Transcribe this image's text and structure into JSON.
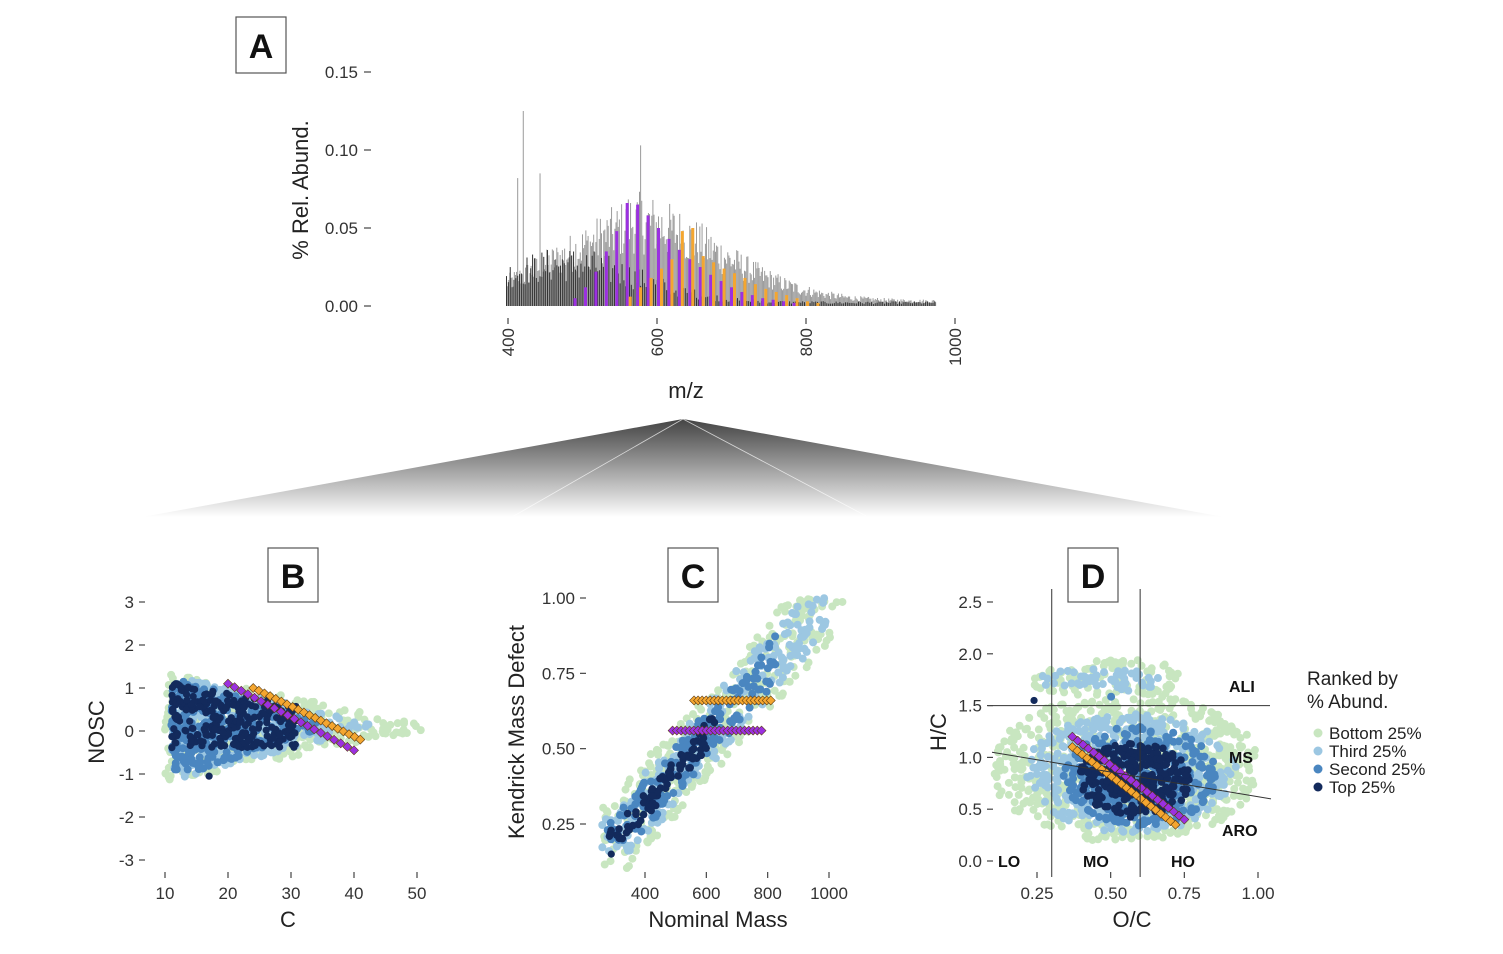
{
  "colors": {
    "bottom25": "#c8e6c0",
    "third25": "#9cc7e2",
    "second25": "#4a86c0",
    "top25": "#132a5c",
    "purple_series": "#9b30e0",
    "orange_series": "#f4a630",
    "spectrum_grey": "#9a9a9a",
    "spectrum_dark": "#333333"
  },
  "chart_data": [
    {
      "panel": "A",
      "type": "bar",
      "label": "A",
      "xlabel": "m/z",
      "ylabel": "% Rel. Abund.",
      "xlim": [
        250,
        1030
      ],
      "ylim": [
        0,
        0.15
      ],
      "xticks": [
        400,
        600,
        800,
        1000
      ],
      "yticks": [
        0.0,
        0.05,
        0.1,
        0.15
      ],
      "ytick_labels": [
        "0.00",
        "0.05",
        "0.10",
        "0.15"
      ],
      "series": [
        {
          "name": "all peaks (light)",
          "color": "grey",
          "envelope_peak_mz": 560,
          "max_value": 0.125
        },
        {
          "name": "all peaks (dark)",
          "color": "dark",
          "envelope_peak_mz": 480,
          "max_value": 0.045
        },
        {
          "name": "purple homologous series",
          "mz": [
            490,
            504,
            518,
            532,
            546,
            560,
            574,
            588,
            602,
            616,
            630,
            644,
            658,
            672,
            686,
            700,
            714,
            728,
            742,
            756,
            770,
            784
          ],
          "values": [
            0.005,
            0.012,
            0.022,
            0.035,
            0.048,
            0.066,
            0.065,
            0.058,
            0.05,
            0.043,
            0.036,
            0.03,
            0.025,
            0.02,
            0.016,
            0.012,
            0.009,
            0.007,
            0.005,
            0.004,
            0.003,
            0.002
          ]
        },
        {
          "name": "orange homologous series",
          "mz": [
            560,
            574,
            588,
            602,
            616,
            630,
            644,
            658,
            672,
            686,
            700,
            714,
            728,
            742,
            756,
            770,
            784,
            798,
            812
          ],
          "values": [
            0.006,
            0.012,
            0.018,
            0.024,
            0.03,
            0.048,
            0.05,
            0.032,
            0.028,
            0.024,
            0.021,
            0.018,
            0.014,
            0.011,
            0.009,
            0.007,
            0.005,
            0.003,
            0.002
          ]
        }
      ]
    },
    {
      "panel": "B",
      "type": "scatter",
      "label": "B",
      "xlabel": "C",
      "ylabel": "NOSC",
      "xlim": [
        8,
        55
      ],
      "ylim": [
        -3,
        3
      ],
      "xticks": [
        10,
        20,
        30,
        40,
        50
      ],
      "yticks": [
        -3,
        -2,
        -1,
        0,
        1,
        2,
        3
      ],
      "purple_series": {
        "x": [
          20,
          40
        ],
        "y": [
          1.1,
          -0.45
        ]
      },
      "orange_series": {
        "x": [
          24,
          41
        ],
        "y": [
          1.0,
          -0.2
        ]
      }
    },
    {
      "panel": "C",
      "type": "scatter",
      "label": "C",
      "xlabel": "Nominal Mass",
      "ylabel": "Kendrick Mass Defect",
      "xlim": [
        230,
        1060
      ],
      "ylim": [
        0.1,
        1.02
      ],
      "xticks": [
        400,
        600,
        800,
        1000
      ],
      "yticks": [
        0.25,
        0.5,
        0.75,
        1.0
      ],
      "ytick_labels": [
        "0.25",
        "0.50",
        "0.75",
        "1.00"
      ],
      "purple_series": {
        "x": [
          490,
          780
        ],
        "y": [
          0.56,
          0.56
        ]
      },
      "orange_series": {
        "x": [
          560,
          810
        ],
        "y": [
          0.66,
          0.66
        ]
      }
    },
    {
      "panel": "D",
      "type": "scatter",
      "label": "D",
      "xlabel": "O/C",
      "ylabel": "H/C",
      "xlim": [
        0.1,
        1.1
      ],
      "ylim": [
        0.0,
        2.6
      ],
      "xticks": [
        0.25,
        0.5,
        0.75,
        1.0
      ],
      "xtick_labels": [
        "0.25",
        "0.50",
        "0.75",
        "1.00"
      ],
      "yticks": [
        0.0,
        0.5,
        1.0,
        1.5,
        2.0,
        2.5
      ],
      "ytick_labels": [
        "0.0",
        "0.5",
        "1.0",
        "1.5",
        "2.0",
        "2.5"
      ],
      "vlines": [
        0.3,
        0.6
      ],
      "hline": 1.5,
      "aro_line": {
        "x": [
          0.1,
          1.1
        ],
        "y": [
          1.05,
          0.6
        ]
      },
      "purple_series": {
        "x": [
          0.37,
          0.75
        ],
        "y": [
          1.2,
          0.4
        ]
      },
      "orange_series": {
        "x": [
          0.37,
          0.72
        ],
        "y": [
          1.1,
          0.35
        ]
      },
      "regions": [
        "ALI",
        "MS",
        "ARO",
        "LO",
        "MO",
        "HO"
      ]
    }
  ],
  "legend": {
    "title_line1": "Ranked by",
    "title_line2": "% Abund.",
    "items": [
      "Bottom 25%",
      "Third 25%",
      "Second 25%",
      "Top 25%"
    ]
  }
}
